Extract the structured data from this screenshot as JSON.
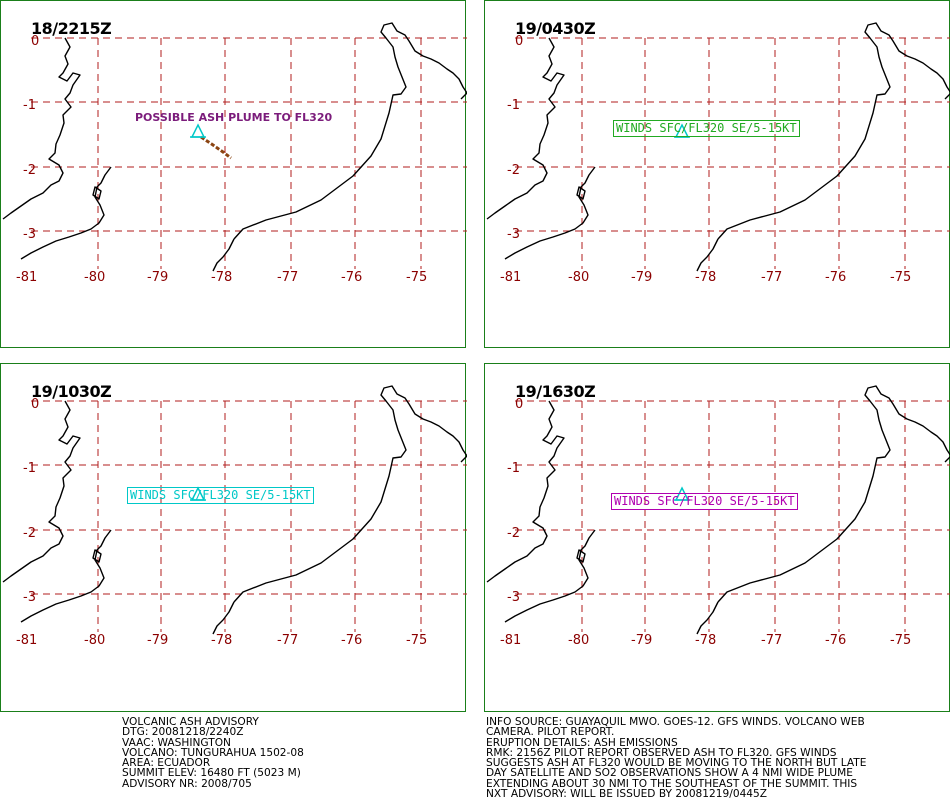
{
  "colors": {
    "frame": "#1a7f1a",
    "grid": "#b11e1e",
    "tick_labels": "#8b0000",
    "coast": "#000000",
    "volcano": "#00c8c8",
    "plume": "#8b4513",
    "plume_label": "#7b1c7b"
  },
  "map": {
    "lat_labels": [
      "0",
      "-1",
      "-2",
      "-3"
    ],
    "lon_labels": [
      "-81",
      "-80",
      "-79",
      "-78",
      "-77",
      "-76",
      "-75"
    ]
  },
  "panels": [
    {
      "title": "18/2215Z",
      "plume_label": "POSSIBLE ASH PLUME TO FL320"
    },
    {
      "title": "19/0430Z",
      "forecast": "WINDS SFC/FL320 SE/5-15KT",
      "forecast_color": "#22aa22"
    },
    {
      "title": "19/1030Z",
      "forecast": "WINDS SFC/FL320 SE/5-15KT",
      "forecast_color": "#00c8c8"
    },
    {
      "title": "19/1630Z",
      "forecast": "WINDS SFC/FL320 SE/5-15KT",
      "forecast_color": "#b000b0"
    }
  ],
  "advisory_left": [
    "VOLCANIC ASH ADVISORY",
    "DTG: 20081218/2240Z",
    "VAAC: WASHINGTON",
    "VOLCANO: TUNGURAHUA 1502-08",
    "AREA: ECUADOR",
    "SUMMIT ELEV: 16480 FT (5023 M)",
    "ADVISORY NR: 2008/705"
  ],
  "advisory_right": [
    "INFO SOURCE: GUAYAQUIL MWO. GOES-12. GFS WINDS. VOLCANO WEB",
    "CAMERA. PILOT REPORT.",
    "ERUPTION DETAILS: ASH EMISSIONS",
    "RMK: 2156Z PILOT REPORT OBSERVED ASH TO FL320. GFS WINDS",
    "SUGGESTS ASH AT FL320 WOULD BE MOVING TO THE NORTH BUT LATE",
    "DAY SATELLITE AND SO2 OBSERVATIONS SHOW A 4 NMI WIDE PLUME",
    "EXTENDING ABOUT 30 NMI TO THE SOUTHEAST OF THE SUMMIT. THIS",
    "NXT ADVISORY: WILL BE ISSUED BY 20081219/0445Z"
  ]
}
